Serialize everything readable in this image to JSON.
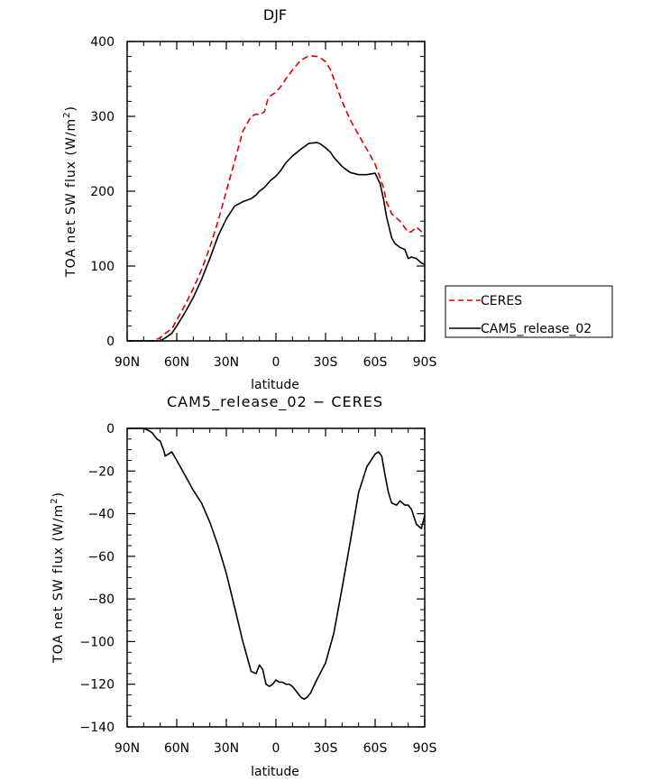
{
  "chart_data": [
    {
      "type": "line",
      "title": "DJF",
      "xlabel": "latitude",
      "ylabel": "TOA net SW flux (W/m",
      "ylabel_sup": "2",
      "ylabel_close": ")",
      "xlim": [
        -90,
        90
      ],
      "ylim": [
        0,
        400
      ],
      "xticks": [
        -90,
        -60,
        -30,
        0,
        30,
        60,
        90
      ],
      "xtick_labels": [
        "90N",
        "60N",
        "30N",
        "0",
        "30S",
        "60S",
        "90S"
      ],
      "yticks": [
        0,
        100,
        200,
        300,
        400
      ],
      "ytick_labels": [
        "0",
        "100",
        "200",
        "300",
        "400"
      ],
      "legend": [
        "CERES",
        "CAM5_release_02"
      ],
      "series": [
        {
          "name": "CERES",
          "color": "#e00000",
          "dash": "dashed",
          "x": [
            -90,
            -85,
            -80,
            -75,
            -70,
            -67,
            -63,
            -60,
            -55,
            -50,
            -45,
            -40,
            -35,
            -30,
            -25,
            -20,
            -15,
            -12,
            -10,
            -7,
            -5,
            -3,
            0,
            3,
            6,
            10,
            15,
            20,
            25,
            27,
            30,
            33,
            35,
            40,
            45,
            50,
            55,
            60,
            63,
            65,
            67,
            70,
            75,
            80,
            82,
            85,
            88,
            90
          ],
          "values": [
            0,
            0,
            0,
            0,
            4,
            10,
            16,
            28,
            48,
            70,
            95,
            125,
            160,
            200,
            240,
            280,
            300,
            303,
            302,
            306,
            322,
            328,
            332,
            340,
            350,
            362,
            375,
            381,
            380,
            378,
            373,
            362,
            350,
            320,
            295,
            275,
            256,
            236,
            218,
            205,
            185,
            170,
            160,
            145,
            146,
            152,
            146,
            142
          ]
        },
        {
          "name": "CAM5_release_02",
          "color": "#000000",
          "dash": "solid",
          "x": [
            -90,
            -85,
            -80,
            -75,
            -70,
            -67,
            -63,
            -60,
            -55,
            -50,
            -45,
            -40,
            -35,
            -30,
            -25,
            -20,
            -15,
            -12,
            -10,
            -7,
            -5,
            -3,
            0,
            3,
            6,
            10,
            15,
            20,
            25,
            27,
            30,
            33,
            35,
            40,
            45,
            50,
            55,
            60,
            63,
            65,
            67,
            70,
            72,
            75,
            78,
            80,
            82,
            85,
            88,
            90
          ],
          "values": [
            0,
            0,
            0,
            0,
            0,
            4,
            10,
            20,
            38,
            58,
            82,
            110,
            140,
            163,
            180,
            186,
            190,
            195,
            200,
            205,
            210,
            215,
            220,
            228,
            238,
            247,
            256,
            264,
            265,
            263,
            258,
            252,
            245,
            233,
            225,
            222,
            222,
            224,
            210,
            190,
            165,
            138,
            130,
            125,
            122,
            110,
            112,
            110,
            104,
            102
          ]
        }
      ]
    },
    {
      "type": "line",
      "title": "CAM5_release_02 − CERES",
      "xlabel": "latitude",
      "ylabel": "TOA net SW flux (W/m",
      "ylabel_sup": "2",
      "ylabel_close": ")",
      "xlim": [
        -90,
        90
      ],
      "ylim": [
        -140,
        0
      ],
      "xticks": [
        -90,
        -60,
        -30,
        0,
        30,
        60,
        90
      ],
      "xtick_labels": [
        "90N",
        "60N",
        "30N",
        "0",
        "30S",
        "60S",
        "90S"
      ],
      "yticks": [
        0,
        -20,
        -40,
        -60,
        -80,
        -100,
        -120,
        -140
      ],
      "ytick_labels": [
        "0",
        "−20",
        "−40",
        "−60",
        "−80",
        "−100",
        "−120",
        "−140"
      ],
      "series": [
        {
          "name": "CAM5_release_02 - CERES",
          "color": "#000000",
          "dash": "solid",
          "x": [
            -90,
            -85,
            -80,
            -77,
            -75,
            -72,
            -70,
            -68,
            -67,
            -65,
            -63,
            -60,
            -55,
            -50,
            -45,
            -40,
            -35,
            -30,
            -25,
            -20,
            -15,
            -12,
            -10,
            -8,
            -6,
            -4,
            -2,
            0,
            2,
            4,
            6,
            8,
            10,
            15,
            17,
            19,
            21,
            24,
            26,
            30,
            35,
            40,
            45,
            50,
            55,
            60,
            62,
            64,
            66,
            68,
            70,
            73,
            75,
            78,
            80,
            82,
            85,
            88,
            90
          ],
          "values": [
            0,
            0,
            0,
            -1,
            -2,
            -5,
            -6,
            -10,
            -13,
            -12,
            -11,
            -15,
            -22,
            -29,
            -35,
            -44,
            -55,
            -68,
            -84,
            -100,
            -114,
            -115,
            -111,
            -113,
            -120,
            -121,
            -120,
            -118,
            -119,
            -119,
            -120,
            -120,
            -121,
            -126,
            -127,
            -126,
            -124,
            -119,
            -116,
            -110,
            -96,
            -75,
            -53,
            -30,
            -18,
            -12,
            -11,
            -13,
            -22,
            -30,
            -35,
            -36,
            -34,
            -36,
            -36,
            -38,
            -45,
            -47,
            -41
          ]
        }
      ]
    }
  ]
}
